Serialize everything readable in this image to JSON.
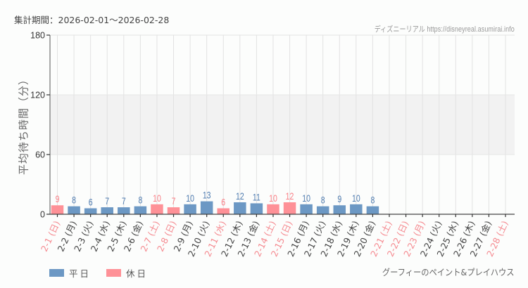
{
  "header": {
    "period_label": "集計期間：2026-02-01〜2026-02-28",
    "credit": "ディズニーリアル https://disneyreal.asumirai.info"
  },
  "footer": {
    "attraction_name": "グーフィーのペイント&プレイハウス"
  },
  "colors": {
    "weekday": "#6c98c4",
    "holiday": "#fe9197",
    "weekday_label": "#4f7cb0",
    "holiday_label": "#f97d84",
    "weekday_tick": "#444444",
    "holiday_tick": "#f58a90",
    "band": "#f2f2f2",
    "grid": "#e2e2e2",
    "axis": "#555555"
  },
  "legend": [
    {
      "key": "weekday",
      "label": "平日"
    },
    {
      "key": "holiday",
      "label": "休日"
    }
  ],
  "chart_data": {
    "type": "bar",
    "title": "",
    "xlabel": "",
    "ylabel": "平均待ち時間（分）",
    "ylim": [
      0,
      180
    ],
    "yticks": [
      0,
      60,
      120,
      180
    ],
    "band": [
      60,
      120
    ],
    "grid": true,
    "legend_position": "bottom-left",
    "categories": [
      "2-1 (日)",
      "2-2 (月)",
      "2-3 (火)",
      "2-4 (水)",
      "2-5 (木)",
      "2-6 (金)",
      "2-7 (土)",
      "2-8 (日)",
      "2-9 (月)",
      "2-10 (火)",
      "2-11 (水)",
      "2-12 (木)",
      "2-13 (金)",
      "2-14 (土)",
      "2-15 (日)",
      "2-16 (月)",
      "2-17 (火)",
      "2-18 (水)",
      "2-19 (木)",
      "2-20 (金)",
      "2-21 (土)",
      "2-22 (日)",
      "2-23 (月)",
      "2-24 (火)",
      "2-25 (水)",
      "2-26 (木)",
      "2-27 (金)",
      "2-28 (土)"
    ],
    "day_type": [
      "holiday",
      "weekday",
      "weekday",
      "weekday",
      "weekday",
      "weekday",
      "holiday",
      "holiday",
      "weekday",
      "weekday",
      "holiday",
      "weekday",
      "weekday",
      "holiday",
      "holiday",
      "weekday",
      "weekday",
      "weekday",
      "weekday",
      "weekday",
      "holiday",
      "holiday",
      "holiday",
      "weekday",
      "weekday",
      "weekday",
      "weekday",
      "holiday"
    ],
    "series": [
      {
        "name": "平均待ち時間",
        "values": [
          9,
          8,
          6,
          7,
          7,
          8,
          10,
          7,
          10,
          13,
          6,
          12,
          11,
          10,
          12,
          10,
          8,
          9,
          10,
          8,
          null,
          null,
          null,
          null,
          null,
          null,
          null,
          null
        ]
      }
    ]
  }
}
